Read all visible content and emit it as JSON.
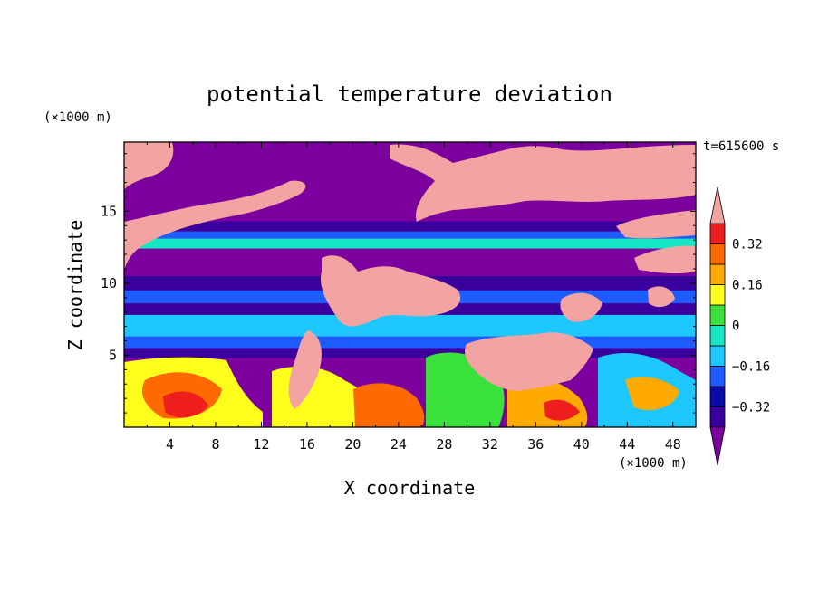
{
  "chart_data": {
    "type": "heatmap",
    "title": "potential temperature deviation",
    "xlabel": "X coordinate",
    "ylabel": "Z coordinate",
    "x_unit": "(×1000 m)",
    "y_unit": "(×1000 m)",
    "time_label": "t=615600 s",
    "xlim": [
      0,
      50
    ],
    "ylim": [
      0,
      19.8
    ],
    "x_ticks": [
      4,
      8,
      12,
      16,
      20,
      24,
      28,
      32,
      36,
      40,
      44,
      48
    ],
    "y_ticks": [
      5,
      10,
      15
    ],
    "colorbar": {
      "levels": [
        -0.4,
        -0.32,
        -0.24,
        -0.16,
        -0.08,
        0,
        0.08,
        0.16,
        0.24,
        0.32,
        0.4
      ],
      "tick_labels": [
        "0.32",
        "0.16",
        "0",
        "−0.16",
        "−0.32"
      ],
      "tick_values": [
        0.32,
        0.16,
        0,
        -0.16,
        -0.32
      ],
      "under_color": "#7b009e",
      "over_color": "#f4a3a3",
      "colors": [
        "#3a009e",
        "#0a0aa8",
        "#1e5cff",
        "#1ec8ff",
        "#15e6c3",
        "#3ce23c",
        "#ffff1e",
        "#ffaa00",
        "#ff6a00",
        "#ee1e1e"
      ]
    },
    "regions": {
      "bands_z": [
        {
          "z": [
            17.5,
            19.8
          ],
          "value": -0.5
        },
        {
          "z": [
            14.3,
            17.5
          ],
          "value": -0.5
        },
        {
          "z": [
            13.6,
            14.3
          ],
          "value": -0.36
        },
        {
          "z": [
            13.1,
            13.6
          ],
          "value": -0.2
        },
        {
          "z": [
            12.4,
            13.1
          ],
          "value": -0.04
        },
        {
          "z": [
            10.5,
            12.4
          ],
          "value": -0.5
        },
        {
          "z": [
            9.5,
            10.5
          ],
          "value": -0.36
        },
        {
          "z": [
            8.6,
            9.5
          ],
          "value": -0.2
        },
        {
          "z": [
            7.8,
            8.6
          ],
          "value": -0.36
        },
        {
          "z": [
            6.3,
            7.8
          ],
          "value": -0.12
        },
        {
          "z": [
            5.5,
            6.3
          ],
          "value": -0.2
        },
        {
          "z": [
            4.8,
            5.5
          ],
          "value": -0.36
        },
        {
          "z": [
            0,
            4.8
          ],
          "value": -0.5
        }
      ]
    }
  }
}
